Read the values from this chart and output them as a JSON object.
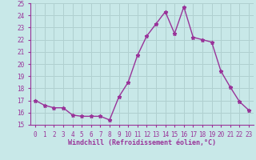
{
  "x": [
    0,
    1,
    2,
    3,
    4,
    5,
    6,
    7,
    8,
    9,
    10,
    11,
    12,
    13,
    14,
    15,
    16,
    17,
    18,
    19,
    20,
    21,
    22,
    23
  ],
  "y": [
    17.0,
    16.6,
    16.4,
    16.4,
    15.8,
    15.7,
    15.7,
    15.7,
    15.4,
    17.3,
    18.5,
    20.7,
    22.3,
    23.3,
    24.3,
    22.5,
    24.7,
    22.2,
    22.0,
    21.8,
    19.4,
    18.1,
    16.9,
    16.2
  ],
  "line_color": "#993399",
  "marker": "*",
  "marker_color": "#993399",
  "bg_color": "#c8e8e8",
  "grid_color": "#b0d0d0",
  "tick_label_color": "#993399",
  "xlabel": "Windchill (Refroidissement éolien,°C)",
  "xlabel_color": "#993399",
  "ylim": [
    15,
    25
  ],
  "yticks": [
    15,
    16,
    17,
    18,
    19,
    20,
    21,
    22,
    23,
    24,
    25
  ],
  "xticks": [
    0,
    1,
    2,
    3,
    4,
    5,
    6,
    7,
    8,
    9,
    10,
    11,
    12,
    13,
    14,
    15,
    16,
    17,
    18,
    19,
    20,
    21,
    22,
    23
  ],
  "line_width": 1.0,
  "marker_size": 3.5,
  "spine_color": "#993399"
}
